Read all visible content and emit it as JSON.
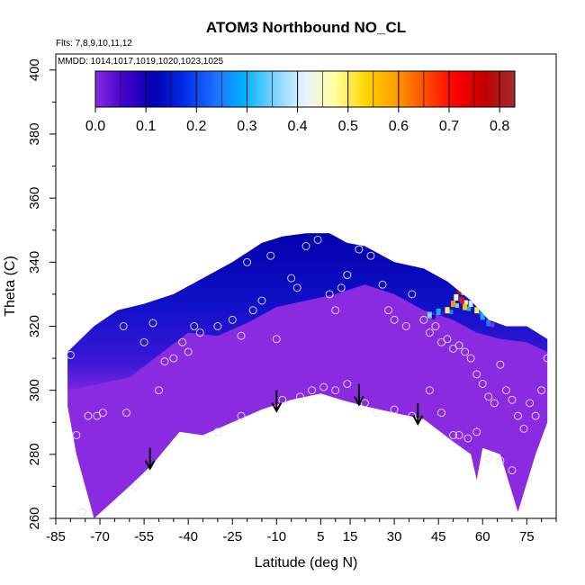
{
  "chart_data": {
    "type": "heatmap",
    "title": "ATOM3 Northbound NO_CL",
    "subtitle_flights": "Flts: 7,8,9,10,11,12",
    "subtitle_dates": "MMDD: 1014,1017,1019,1020,1023,1025",
    "xlabel": "Latitude (deg N)",
    "ylabel": "Theta (C)",
    "xlim": [
      -85,
      85
    ],
    "ylim": [
      260,
      405
    ],
    "x_ticks": [
      -85,
      -70,
      -55,
      -40,
      -25,
      -10,
      5,
      15,
      30,
      45,
      60,
      75
    ],
    "x_tick_labels": [
      "-85",
      "-70",
      "-55",
      "-40",
      "-25",
      "-10",
      "5",
      "15",
      "30",
      "45",
      "60",
      "75"
    ],
    "y_ticks": [
      260,
      280,
      300,
      320,
      340,
      360,
      380,
      400
    ],
    "y_tick_labels": [
      "260",
      "280",
      "300",
      "320",
      "340",
      "360",
      "380",
      "400"
    ],
    "colorbar": {
      "range": [
        0,
        0.83
      ],
      "ticks": [
        0,
        0.1,
        0.2,
        0.3,
        0.4,
        0.5,
        0.6,
        0.7,
        0.8
      ],
      "tick_labels": [
        "0.0",
        "0.1",
        "0.2",
        "0.3",
        "0.4",
        "0.5",
        "0.6",
        "0.7",
        "0.8"
      ],
      "colors": [
        "#8a2be2",
        "#3f00c8",
        "#0000b4",
        "#0030e8",
        "#1e6fff",
        "#00b4ff",
        "#7fd4ff",
        "#e8f4ff",
        "#ffffa0",
        "#ffd700",
        "#ff9f00",
        "#ff4d00",
        "#ff0000",
        "#c00000",
        "#a52a2a"
      ]
    },
    "colors": {
      "base": "#8a2be2",
      "top_band": "#1010c8",
      "peak": "#0000aa",
      "high_value": "#ff0000"
    },
    "domain_top": [
      [
        -81,
        312
      ],
      [
        -72,
        320
      ],
      [
        -64,
        325
      ],
      [
        -55,
        327
      ],
      [
        -45,
        330
      ],
      [
        -35,
        335
      ],
      [
        -25,
        340
      ],
      [
        -15,
        346
      ],
      [
        -8,
        348
      ],
      [
        0,
        349
      ],
      [
        8,
        349
      ],
      [
        14,
        346
      ],
      [
        20,
        345
      ],
      [
        30,
        340
      ],
      [
        40,
        338
      ],
      [
        48,
        334
      ],
      [
        56,
        328
      ],
      [
        62,
        322
      ],
      [
        68,
        320
      ],
      [
        75,
        320
      ],
      [
        82,
        316
      ]
    ],
    "domain_bottom": [
      [
        -81,
        295
      ],
      [
        -78,
        280
      ],
      [
        -72,
        260
      ],
      [
        -60,
        270
      ],
      [
        -52,
        277
      ],
      [
        -43,
        287
      ],
      [
        -35,
        286
      ],
      [
        -25,
        290
      ],
      [
        -15,
        294
      ],
      [
        -5,
        297
      ],
      [
        5,
        299
      ],
      [
        12,
        297
      ],
      [
        20,
        295
      ],
      [
        30,
        293
      ],
      [
        40,
        291
      ],
      [
        50,
        284
      ],
      [
        56,
        280
      ],
      [
        58,
        272
      ],
      [
        60,
        282
      ],
      [
        66,
        280
      ],
      [
        72,
        262
      ],
      [
        78,
        280
      ],
      [
        82,
        290
      ]
    ],
    "band_contour": [
      [
        -81,
        300
      ],
      [
        -70,
        302
      ],
      [
        -60,
        304
      ],
      [
        -50,
        311
      ],
      [
        -40,
        318
      ],
      [
        -30,
        317
      ],
      [
        -20,
        321
      ],
      [
        -10,
        326
      ],
      [
        0,
        328
      ],
      [
        10,
        330
      ],
      [
        20,
        333
      ],
      [
        30,
        330
      ],
      [
        40,
        325
      ],
      [
        50,
        322
      ],
      [
        58,
        318
      ],
      [
        66,
        316
      ],
      [
        75,
        315
      ],
      [
        82,
        312
      ]
    ],
    "hot_cells": [
      {
        "lat": 42,
        "theta": 323.5,
        "value": 0.35
      },
      {
        "lat": 45,
        "theta": 324.5,
        "value": 0.3
      },
      {
        "lat": 48,
        "theta": 325,
        "value": 0.5
      },
      {
        "lat": 50,
        "theta": 327,
        "value": 0.6
      },
      {
        "lat": 51,
        "theta": 329,
        "value": 0.45
      },
      {
        "lat": 52,
        "theta": 331,
        "value": 0.8
      },
      {
        "lat": 53,
        "theta": 328,
        "value": 0.7
      },
      {
        "lat": 54,
        "theta": 326,
        "value": 0.55
      },
      {
        "lat": 56,
        "theta": 327,
        "value": 0.4
      },
      {
        "lat": 58,
        "theta": 325,
        "value": 0.5
      },
      {
        "lat": 60,
        "theta": 323,
        "value": 0.3
      },
      {
        "lat": 62,
        "theta": 321,
        "value": 0.25
      }
    ],
    "arrows": [
      {
        "lat": -53,
        "theta": 282
      },
      {
        "lat": -10,
        "theta": 300
      },
      {
        "lat": 18,
        "theta": 302
      },
      {
        "lat": 38,
        "theta": 296
      }
    ],
    "samples": [
      [
        -80,
        311
      ],
      [
        -74,
        292
      ],
      [
        -71,
        292
      ],
      [
        -69,
        293
      ],
      [
        -61,
        293
      ],
      [
        -78,
        286
      ],
      [
        -58,
        270
      ],
      [
        -50,
        300
      ],
      [
        -48,
        309
      ],
      [
        -45,
        310
      ],
      [
        -40,
        312
      ],
      [
        -42,
        315
      ],
      [
        -38,
        320
      ],
      [
        -36,
        318
      ],
      [
        -30,
        320
      ],
      [
        -25,
        322
      ],
      [
        -22,
        317
      ],
      [
        -18,
        325
      ],
      [
        -15,
        328
      ],
      [
        -20,
        340
      ],
      [
        -12,
        342
      ],
      [
        -5,
        335
      ],
      [
        -3,
        332
      ],
      [
        0,
        345
      ],
      [
        4,
        347
      ],
      [
        8,
        330
      ],
      [
        10,
        325
      ],
      [
        12,
        332
      ],
      [
        14,
        336
      ],
      [
        18,
        344
      ],
      [
        22,
        342
      ],
      [
        26,
        333
      ],
      [
        28,
        325
      ],
      [
        30,
        322
      ],
      [
        34,
        320
      ],
      [
        36,
        330
      ],
      [
        40,
        322
      ],
      [
        42,
        318
      ],
      [
        44,
        320
      ],
      [
        46,
        315
      ],
      [
        48,
        316
      ],
      [
        50,
        313
      ],
      [
        52,
        314
      ],
      [
        54,
        312
      ],
      [
        56,
        310
      ],
      [
        58,
        305
      ],
      [
        60,
        302
      ],
      [
        62,
        298
      ],
      [
        64,
        296
      ],
      [
        66,
        308
      ],
      [
        68,
        300
      ],
      [
        70,
        297
      ],
      [
        72,
        292
      ],
      [
        74,
        288
      ],
      [
        76,
        296
      ],
      [
        78,
        292
      ],
      [
        80,
        300
      ],
      [
        82,
        310
      ],
      [
        -62,
        320
      ],
      [
        -55,
        315
      ],
      [
        -52,
        321
      ],
      [
        -30,
        287
      ],
      [
        -22,
        292
      ],
      [
        -10,
        316
      ],
      [
        -8,
        297
      ],
      [
        -2,
        298
      ],
      [
        2,
        300
      ],
      [
        6,
        301
      ],
      [
        10,
        300
      ],
      [
        14,
        302
      ],
      [
        20,
        296
      ],
      [
        24,
        293
      ],
      [
        30,
        294
      ],
      [
        36,
        292
      ],
      [
        42,
        300
      ],
      [
        46,
        293
      ],
      [
        50,
        286
      ],
      [
        52,
        286
      ],
      [
        55,
        285
      ],
      [
        58,
        287
      ],
      [
        62,
        279
      ],
      [
        66,
        278
      ],
      [
        70,
        275
      ],
      [
        -76,
        262
      ]
    ]
  }
}
